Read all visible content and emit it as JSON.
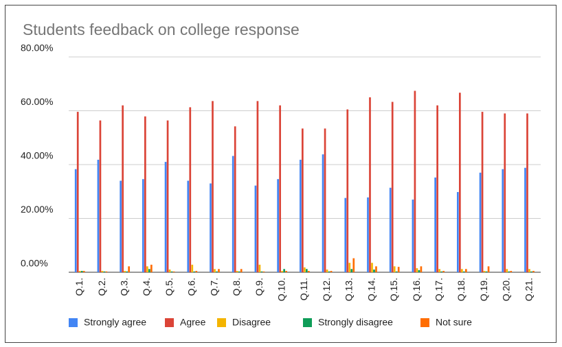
{
  "chart_data": {
    "type": "bar",
    "title": "Students feedback on college response",
    "categories": [
      "Q.1.",
      "Q.2.",
      "Q.3.",
      "Q.4.",
      "Q.5.",
      "Q.6.",
      "Q.7.",
      "Q.8.",
      "Q.9.",
      "Q.10.",
      "Q.11.",
      "Q.12.",
      "Q.13.",
      "Q.14.",
      "Q.15.",
      "Q.16.",
      "Q.17.",
      "Q.18.",
      "Q.19.",
      "Q.20.",
      "Q.21."
    ],
    "series": [
      {
        "name": "Strongly agree",
        "color": "#4285f4",
        "values": [
          38.3,
          41.8,
          34,
          34.6,
          41,
          34,
          33,
          43.2,
          32.2,
          34.6,
          41.8,
          43.8,
          27.6,
          27.8,
          31.4,
          27,
          35.2,
          29.8,
          37,
          38.3,
          38.8
        ]
      },
      {
        "name": "Agree",
        "color": "#db4437",
        "values": [
          59.6,
          56.4,
          62,
          57.9,
          56.4,
          61.3,
          63.6,
          54.2,
          63.6,
          62,
          53.4,
          53.4,
          60.5,
          65,
          63.3,
          67.4,
          62,
          66.7,
          59.6,
          59,
          59
        ]
      },
      {
        "name": "Disagree",
        "color": "#f4b400",
        "values": [
          0.5,
          0.5,
          0.5,
          2.2,
          1,
          2.8,
          1.2,
          0.5,
          2.8,
          0.5,
          1.8,
          1,
          3.5,
          3.5,
          2.2,
          1.5,
          1.2,
          1.2,
          0.5,
          1.2,
          1.2
        ]
      },
      {
        "name": "Strongly disagree",
        "color": "#0f9d58",
        "values": [
          0.5,
          0.3,
          0.3,
          1.2,
          0.3,
          0.3,
          0.3,
          0.3,
          0.3,
          1.2,
          1.2,
          0.3,
          1.2,
          1,
          0.3,
          0.8,
          0.3,
          0.3,
          0.3,
          0.3,
          0.3
        ]
      },
      {
        "name": "Not sure",
        "color": "#ff6d01",
        "values": [
          0.5,
          0.3,
          2.2,
          2.8,
          0.3,
          0.5,
          1.2,
          1.2,
          0.3,
          0.5,
          0.5,
          0.5,
          5.2,
          2.2,
          2,
          2.2,
          0.5,
          1.2,
          2.2,
          0.5,
          0.5
        ]
      }
    ],
    "ylim": [
      0,
      80
    ],
    "yticks": [
      {
        "value": 0,
        "label": "0.00%"
      },
      {
        "value": 20,
        "label": "20.00%"
      },
      {
        "value": 40,
        "label": "40.00%"
      },
      {
        "value": 60,
        "label": "60.00%"
      },
      {
        "value": 80,
        "label": "80.00%"
      }
    ],
    "grid": true,
    "legend": "bottom"
  }
}
